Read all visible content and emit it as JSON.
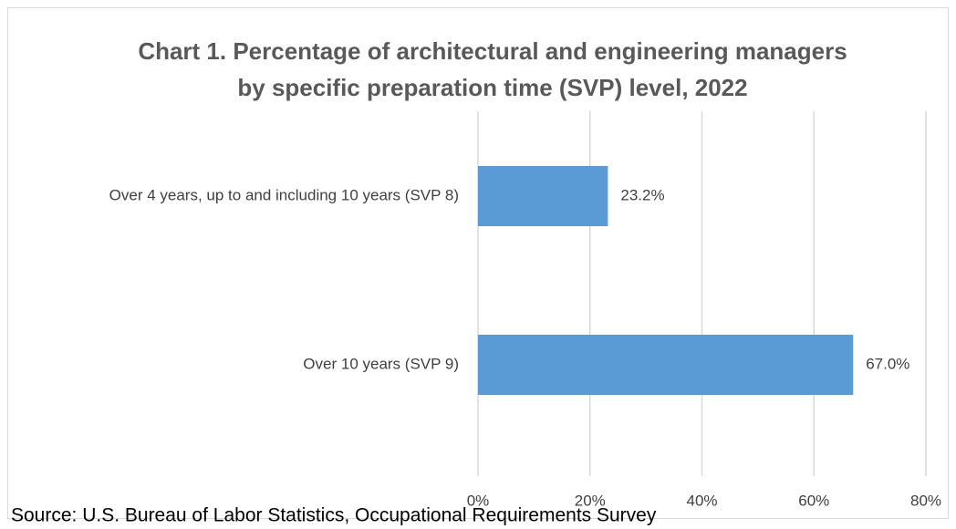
{
  "chart_data": {
    "type": "bar",
    "orientation": "horizontal",
    "title": [
      "Chart 1. Percentage of architectural and engineering managers",
      "by specific preparation time (SVP) level, 2022"
    ],
    "categories": [
      "Over 4 years, up to and including 10 years (SVP 8)",
      "Over 10 years (SVP 9)"
    ],
    "values": [
      23.2,
      67.0
    ],
    "value_labels": [
      "23.2%",
      "67.0%"
    ],
    "color": "#5b9bd5",
    "xlim": [
      0,
      80
    ],
    "xticks": [
      {
        "value": 0,
        "label": "0%"
      },
      {
        "value": 20,
        "label": "20%"
      },
      {
        "value": 40,
        "label": "40%"
      },
      {
        "value": 60,
        "label": "60%"
      },
      {
        "value": 80,
        "label": "80%"
      }
    ],
    "grid": true,
    "source": "Source: U.S. Bureau of Labor Statistics, Occupational Requirements Survey"
  }
}
